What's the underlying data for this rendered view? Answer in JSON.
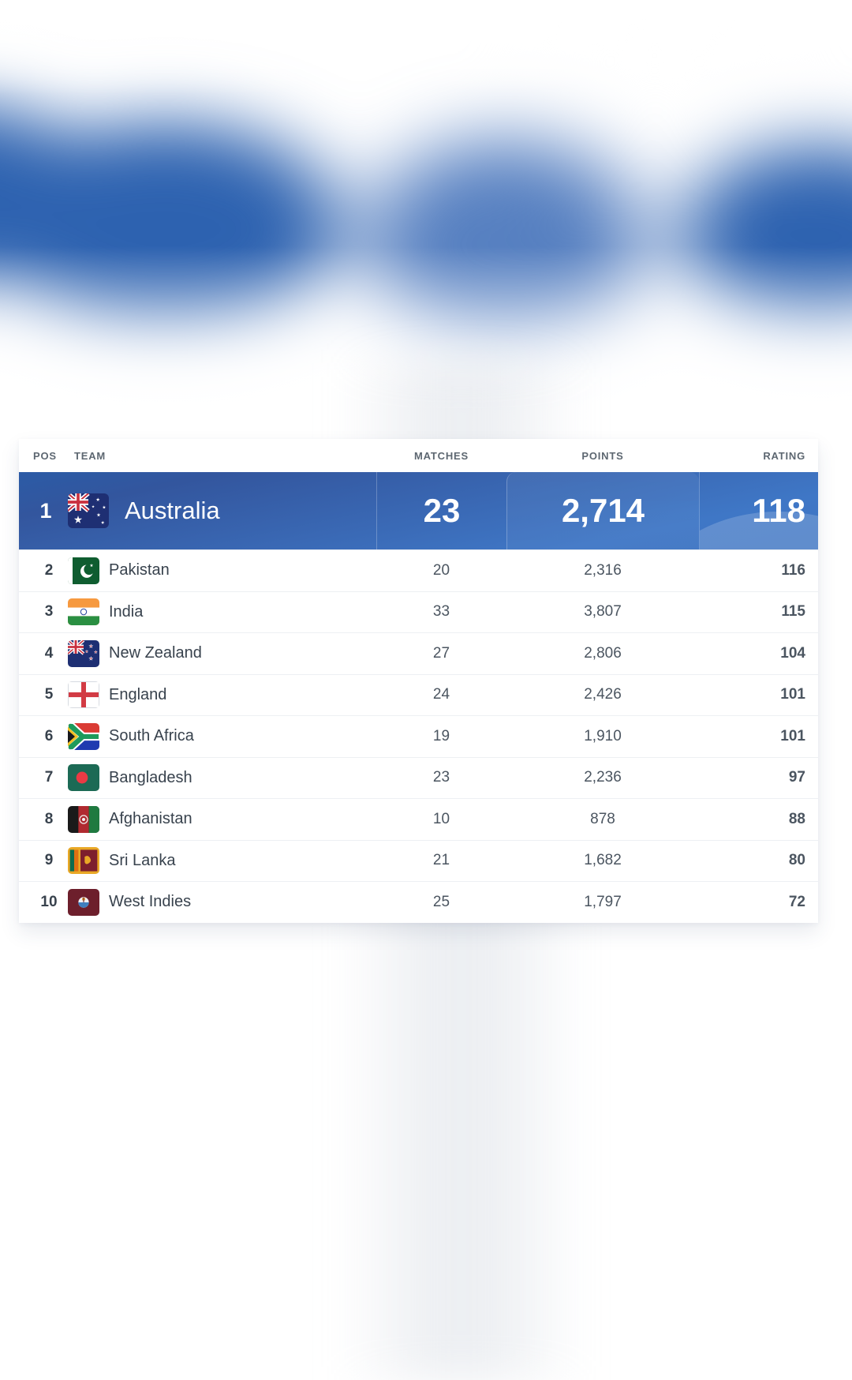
{
  "screen": {
    "table": {
      "headers": {
        "pos": "POS",
        "team": "TEAM",
        "matches": "MATCHES",
        "points": "POINTS",
        "rating": "RATING"
      },
      "rows": [
        {
          "pos": "1",
          "team": "Australia",
          "matches": "23",
          "points": "2,714",
          "rating": "118",
          "flag": "australia",
          "highlight": true
        },
        {
          "pos": "2",
          "team": "Pakistan",
          "matches": "20",
          "points": "2,316",
          "rating": "116",
          "flag": "pakistan",
          "highlight": false
        },
        {
          "pos": "3",
          "team": "India",
          "matches": "33",
          "points": "3,807",
          "rating": "115",
          "flag": "india",
          "highlight": false
        },
        {
          "pos": "4",
          "team": "New Zealand",
          "matches": "27",
          "points": "2,806",
          "rating": "104",
          "flag": "new-zealand",
          "highlight": false
        },
        {
          "pos": "5",
          "team": "England",
          "matches": "24",
          "points": "2,426",
          "rating": "101",
          "flag": "england",
          "highlight": false
        },
        {
          "pos": "6",
          "team": "South Africa",
          "matches": "19",
          "points": "1,910",
          "rating": "101",
          "flag": "south-africa",
          "highlight": false
        },
        {
          "pos": "7",
          "team": "Bangladesh",
          "matches": "23",
          "points": "2,236",
          "rating": "97",
          "flag": "bangladesh",
          "highlight": false
        },
        {
          "pos": "8",
          "team": "Afghanistan",
          "matches": "10",
          "points": "878",
          "rating": "88",
          "flag": "afghanistan",
          "highlight": false
        },
        {
          "pos": "9",
          "team": "Sri Lanka",
          "matches": "21",
          "points": "1,682",
          "rating": "80",
          "flag": "sri-lanka",
          "highlight": false
        },
        {
          "pos": "10",
          "team": "West Indies",
          "matches": "25",
          "points": "1,797",
          "rating": "72",
          "flag": "west-indies",
          "highlight": false
        }
      ]
    },
    "theme": {
      "page_background": "#ffffff",
      "hero_blue": "#2d62b0",
      "highlight_row_gradient_top": "#2b5ba6",
      "highlight_row_gradient_bottom": "#3f77c6",
      "highlight_text": "#ffffff",
      "header_label_color": "#5d6771",
      "row_text_color": "#38424d",
      "value_text_color": "#4b5560",
      "row_separator": "#edf0f3"
    }
  }
}
